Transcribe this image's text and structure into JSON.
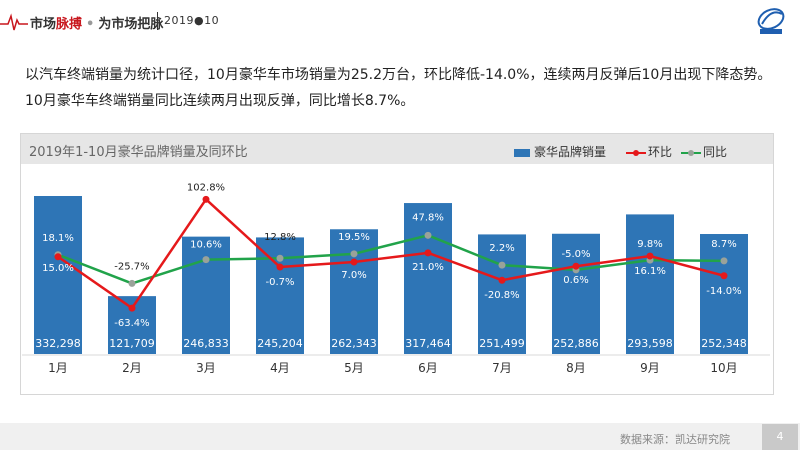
{
  "header": {
    "brand_left": "市场",
    "brand_highlight": "脉搏",
    "brand_dot": "•",
    "brand_right": "为市场把脉",
    "period": "2019●10"
  },
  "intro": {
    "line": "以汽车终端销量为统计口径，10月豪华车市场销量为25.2万台，环比降低-14.0%，连续两月反弹后10月出现下降态势。10月豪华车终端销量同比连续两月出现反弹，同比增长8.7%。"
  },
  "legend": {
    "bar": "豪华品牌销量",
    "mom": "环比",
    "yoy": "同比"
  },
  "colors": {
    "bar": "#2e75b6",
    "mom": "#e5191b",
    "yoy": "#21a34a",
    "marker": "#9aa29a",
    "bar_label": "#ffffff"
  },
  "chart_data": {
    "type": "bar",
    "title": "2019年1-10月豪华品牌销量及同环比",
    "categories": [
      "1月",
      "2月",
      "3月",
      "4月",
      "5月",
      "6月",
      "7月",
      "8月",
      "9月",
      "10月"
    ],
    "series": [
      {
        "name": "豪华品牌销量",
        "type": "bar",
        "values": [
          332298,
          121709,
          246833,
          245204,
          262343,
          317464,
          251499,
          252886,
          293598,
          252348
        ],
        "labels": [
          "332,298",
          "121,709",
          "246,833",
          "245,204",
          "262,343",
          "317,464",
          "251,499",
          "252,886",
          "293,598",
          "252,348"
        ]
      },
      {
        "name": "环比",
        "type": "line",
        "values": [
          15.0,
          -63.4,
          102.8,
          -0.7,
          7.0,
          21.0,
          -20.8,
          0.6,
          16.1,
          -14.0
        ],
        "labels": [
          "15.0%",
          "-63.4%",
          "102.8%",
          "-0.7%",
          "7.0%",
          "21.0%",
          "-20.8%",
          "0.6%",
          "16.1%",
          "-14.0%"
        ]
      },
      {
        "name": "同比",
        "type": "line",
        "values": [
          18.1,
          -25.7,
          10.6,
          12.8,
          19.5,
          47.8,
          2.2,
          -5.0,
          9.8,
          8.7
        ],
        "labels": [
          "18.1%",
          "-25.7%",
          "10.6%",
          "12.8%",
          "19.5%",
          "47.8%",
          "2.2%",
          "-5.0%",
          "9.8%",
          "8.7%"
        ]
      }
    ]
  },
  "footer": {
    "source": "数据来源：凯达研究院",
    "page": "4"
  }
}
